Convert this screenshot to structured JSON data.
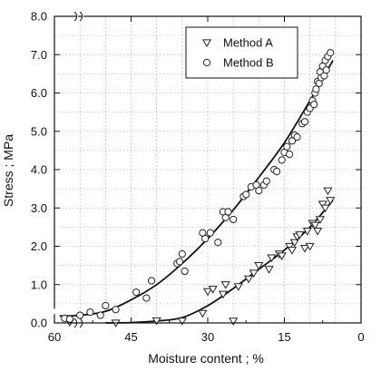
{
  "chart_data": {
    "type": "scatter",
    "xlabel": "Moisture content ; %",
    "ylabel": "Stress ; MPa",
    "xlim": [
      60,
      0
    ],
    "ylim": [
      0,
      8
    ],
    "x_reversed": true,
    "x_ticks": [
      "60",
      "45",
      "30",
      "15",
      "0"
    ],
    "x_tick_values": [
      60,
      45,
      30,
      15,
      0
    ],
    "y_ticks": [
      "0.0",
      "1.0",
      "2.0",
      "3.0",
      "4.0",
      "5.0",
      "6.0",
      "7.0",
      "8.0"
    ],
    "y_tick_values": [
      0,
      1,
      2,
      3,
      4,
      5,
      6,
      7,
      8
    ],
    "grid": true,
    "axis_break_marks": true,
    "legend_position": "top-right",
    "series": [
      {
        "name": "Method A",
        "marker": "triangle-down",
        "points": [
          [
            57,
            0.02
          ],
          [
            48,
            0.0
          ],
          [
            40,
            0.06
          ],
          [
            35,
            0.05
          ],
          [
            31,
            0.25
          ],
          [
            30,
            0.82
          ],
          [
            29,
            0.88
          ],
          [
            27,
            0.75
          ],
          [
            26.5,
            1.0
          ],
          [
            25,
            0.05
          ],
          [
            24,
            0.95
          ],
          [
            22,
            1.15
          ],
          [
            21,
            1.3
          ],
          [
            20,
            1.5
          ],
          [
            18,
            1.4
          ],
          [
            17.5,
            1.7
          ],
          [
            16,
            1.8
          ],
          [
            15.5,
            1.75
          ],
          [
            14,
            2.0
          ],
          [
            13.5,
            1.9
          ],
          [
            13,
            2.1
          ],
          [
            12.5,
            2.25
          ],
          [
            12,
            2.3
          ],
          [
            11,
            1.95
          ],
          [
            10.5,
            2.4
          ],
          [
            10,
            2.0
          ],
          [
            9.5,
            2.6
          ],
          [
            9,
            2.55
          ],
          [
            8.5,
            2.4
          ],
          [
            8,
            2.7
          ],
          [
            7.5,
            3.1
          ],
          [
            7,
            3.0
          ],
          [
            6.5,
            3.45
          ],
          [
            6,
            3.2
          ]
        ],
        "fit": [
          [
            50,
            0.0
          ],
          [
            45,
            0.01
          ],
          [
            40,
            0.05
          ],
          [
            35,
            0.14
          ],
          [
            30,
            0.45
          ],
          [
            25,
            0.9
          ],
          [
            20,
            1.4
          ],
          [
            15,
            1.9
          ],
          [
            10,
            2.5
          ],
          [
            5.5,
            3.2
          ]
        ]
      },
      {
        "name": "Method B",
        "marker": "circle",
        "points": [
          [
            58,
            0.12
          ],
          [
            57,
            0.1
          ],
          [
            55,
            0.2
          ],
          [
            53,
            0.28
          ],
          [
            51,
            0.2
          ],
          [
            50,
            0.45
          ],
          [
            48,
            0.35
          ],
          [
            44,
            0.8
          ],
          [
            42,
            0.65
          ],
          [
            41,
            1.1
          ],
          [
            36,
            1.55
          ],
          [
            35.5,
            1.6
          ],
          [
            35,
            1.8
          ],
          [
            34.5,
            1.35
          ],
          [
            31,
            2.35
          ],
          [
            30.5,
            2.2
          ],
          [
            29.5,
            2.35
          ],
          [
            28,
            2.1
          ],
          [
            27,
            2.9
          ],
          [
            26.5,
            2.75
          ],
          [
            26,
            2.9
          ],
          [
            25,
            2.7
          ],
          [
            23,
            3.3
          ],
          [
            22.5,
            3.35
          ],
          [
            21.5,
            3.55
          ],
          [
            20.5,
            3.6
          ],
          [
            20,
            3.45
          ],
          [
            19,
            3.6
          ],
          [
            18.5,
            3.7
          ],
          [
            17,
            4.0
          ],
          [
            16.5,
            3.95
          ],
          [
            15.5,
            4.25
          ],
          [
            15,
            4.45
          ],
          [
            14.5,
            4.6
          ],
          [
            14,
            4.4
          ],
          [
            13.5,
            4.75
          ],
          [
            13,
            4.9
          ],
          [
            12.5,
            4.85
          ],
          [
            11.5,
            5.2
          ],
          [
            11,
            5.25
          ],
          [
            10.5,
            5.5
          ],
          [
            10,
            5.6
          ],
          [
            9.5,
            5.8
          ],
          [
            9.2,
            5.7
          ],
          [
            9,
            6.0
          ],
          [
            8.8,
            6.1
          ],
          [
            8.5,
            6.3
          ],
          [
            8.2,
            6.25
          ],
          [
            8,
            6.55
          ],
          [
            7.8,
            6.4
          ],
          [
            7.5,
            6.7
          ],
          [
            7.2,
            6.45
          ],
          [
            7,
            6.85
          ],
          [
            6.8,
            6.6
          ],
          [
            6.5,
            6.95
          ],
          [
            6,
            7.05
          ]
        ],
        "fit": [
          [
            59,
            0.18
          ],
          [
            55,
            0.2
          ],
          [
            50,
            0.3
          ],
          [
            45,
            0.6
          ],
          [
            40,
            1.0
          ],
          [
            35,
            1.55
          ],
          [
            30,
            2.2
          ],
          [
            25,
            2.95
          ],
          [
            20,
            3.8
          ],
          [
            15,
            4.7
          ],
          [
            10,
            5.8
          ],
          [
            5.5,
            6.85
          ]
        ]
      }
    ]
  },
  "colors": {
    "axis": "#111111",
    "grid": "#9a9a9a",
    "marker_stroke": "#222222",
    "marker_fill": "#ffffff"
  }
}
